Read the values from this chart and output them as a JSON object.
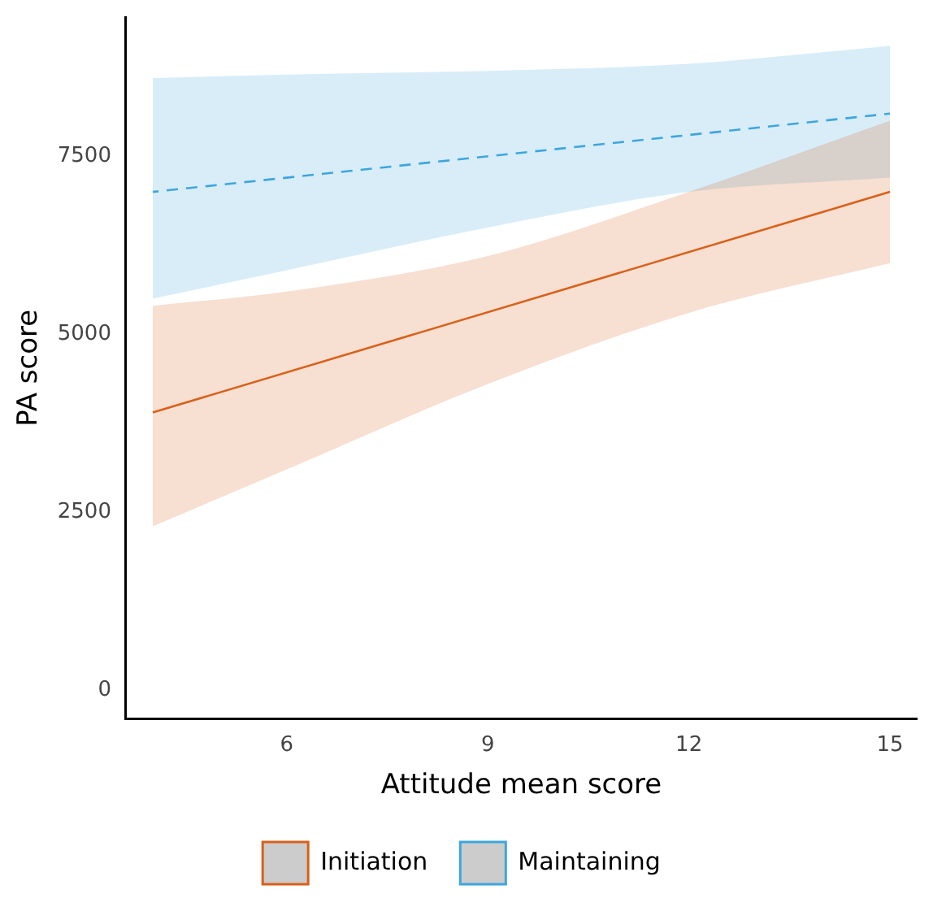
{
  "chart_data": {
    "type": "line",
    "xlabel": "Attitude mean score",
    "ylabel": "PA score",
    "x": [
      4,
      6,
      9,
      12,
      15
    ],
    "series": [
      {
        "name": "Initiation",
        "color": "#d9601a",
        "line_style": "solid",
        "values": [
          3900,
          null,
          null,
          null,
          7000
        ],
        "lower": [
          2300,
          3100,
          4300,
          5300,
          6000
        ],
        "upper": [
          5400,
          5600,
          6100,
          7000,
          8000
        ]
      },
      {
        "name": "Maintaining",
        "color": "#3ea6dd",
        "line_style": "dashed",
        "values": [
          7000,
          null,
          null,
          null,
          8100
        ],
        "lower": [
          5500,
          5900,
          6500,
          7000,
          7200
        ],
        "upper": [
          8600,
          8650,
          8700,
          8800,
          9050
        ]
      }
    ],
    "xlim": [
      3.6,
      15.4
    ],
    "xticks": [
      6,
      9,
      12,
      15
    ],
    "ylim": [
      -400,
      9450
    ],
    "yticks": [
      0,
      2500,
      5000,
      7500
    ],
    "grid": false,
    "legend": "bottom",
    "marker": "none"
  }
}
